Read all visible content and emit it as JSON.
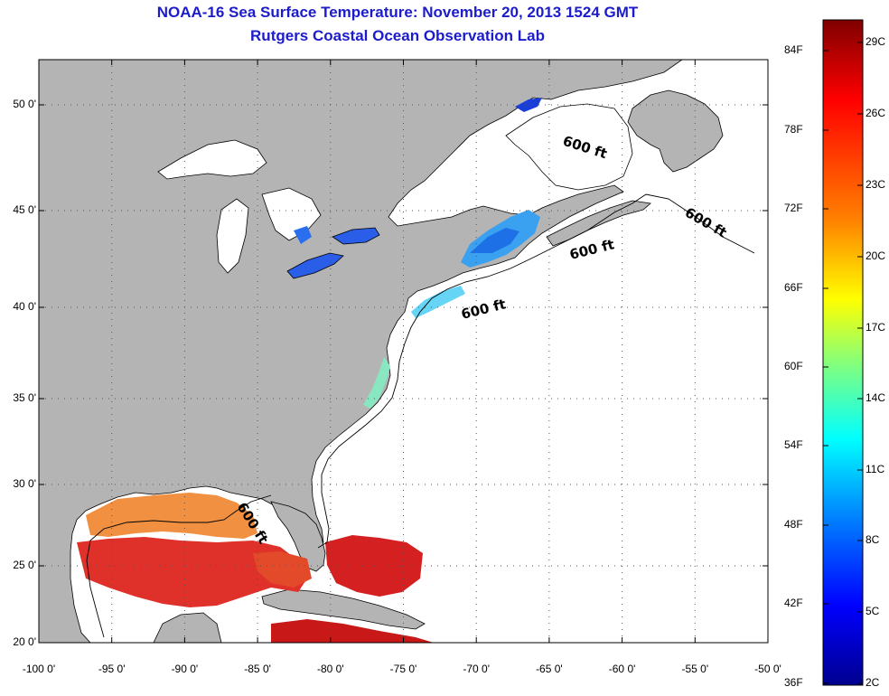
{
  "title": "NOAA-16 Sea Surface Temperature:  November 20, 2013 1524 GMT",
  "subtitle": "Rutgers Coastal Ocean Observation Lab",
  "map": {
    "lon_ticks": [
      "-100 0'",
      "-95 0'",
      "-90 0'",
      "-85 0'",
      "-80 0'",
      "-75 0'",
      "-70 0'",
      "-65 0'",
      "-60 0'",
      "-55 0'",
      "-50 0'"
    ],
    "lat_ticks": [
      "50 0'",
      "45 0'",
      "40 0'",
      "35 0'",
      "30 0'",
      "25 0'",
      "20 0'"
    ],
    "isobath_label": "600 ft",
    "colors": {
      "land": "#b4b4b4",
      "ocean": "#ffffff",
      "title_text": "#1c1ccc"
    }
  },
  "colorbar": {
    "fahrenheit_labels": [
      "84F",
      "78F",
      "72F",
      "66F",
      "60F",
      "54F",
      "48F",
      "42F",
      "36F"
    ],
    "celsius_labels": [
      "29C",
      "26C",
      "23C",
      "20C",
      "17C",
      "14C",
      "11C",
      "8C",
      "5C",
      "2C"
    ],
    "gradient_colors": [
      "#7f0000",
      "#ff0000",
      "#ff8000",
      "#ffff00",
      "#80ff80",
      "#00ffff",
      "#0080ff",
      "#0000ff",
      "#00008f"
    ]
  }
}
